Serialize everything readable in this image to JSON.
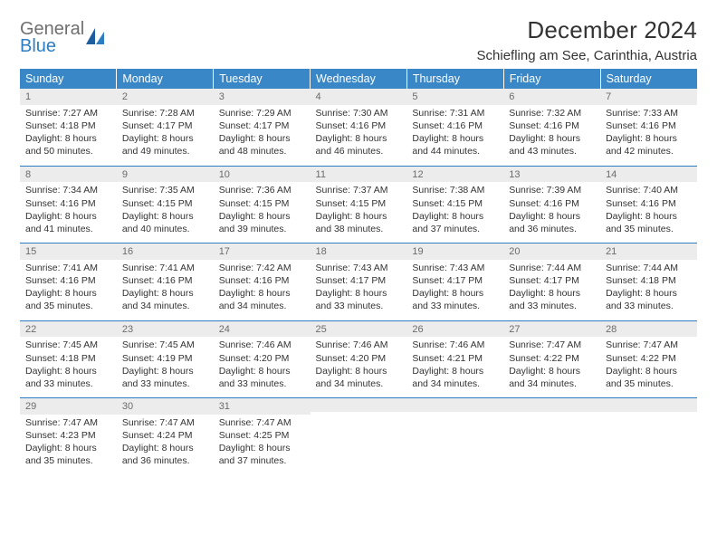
{
  "logo": {
    "line1": "General",
    "line2": "Blue"
  },
  "title": "December 2024",
  "location": "Schiefling am See, Carinthia, Austria",
  "colors": {
    "header_bg": "#3a87c7",
    "header_text": "#ffffff",
    "daynum_bg": "#ececec",
    "daynum_text": "#6b6b6b",
    "border": "#2d7dc2",
    "body_text": "#333333",
    "logo_general": "#6f6f6f",
    "logo_blue": "#2d7dc2"
  },
  "typography": {
    "title_fontsize": 26,
    "location_fontsize": 15,
    "header_fontsize": 12.5,
    "cell_fontsize": 10.5,
    "daynum_fontsize": 11
  },
  "dayHeaders": [
    "Sunday",
    "Monday",
    "Tuesday",
    "Wednesday",
    "Thursday",
    "Friday",
    "Saturday"
  ],
  "weeks": [
    [
      {
        "num": "1",
        "sunrise": "Sunrise: 7:27 AM",
        "sunset": "Sunset: 4:18 PM",
        "daylight": "Daylight: 8 hours and 50 minutes."
      },
      {
        "num": "2",
        "sunrise": "Sunrise: 7:28 AM",
        "sunset": "Sunset: 4:17 PM",
        "daylight": "Daylight: 8 hours and 49 minutes."
      },
      {
        "num": "3",
        "sunrise": "Sunrise: 7:29 AM",
        "sunset": "Sunset: 4:17 PM",
        "daylight": "Daylight: 8 hours and 48 minutes."
      },
      {
        "num": "4",
        "sunrise": "Sunrise: 7:30 AM",
        "sunset": "Sunset: 4:16 PM",
        "daylight": "Daylight: 8 hours and 46 minutes."
      },
      {
        "num": "5",
        "sunrise": "Sunrise: 7:31 AM",
        "sunset": "Sunset: 4:16 PM",
        "daylight": "Daylight: 8 hours and 44 minutes."
      },
      {
        "num": "6",
        "sunrise": "Sunrise: 7:32 AM",
        "sunset": "Sunset: 4:16 PM",
        "daylight": "Daylight: 8 hours and 43 minutes."
      },
      {
        "num": "7",
        "sunrise": "Sunrise: 7:33 AM",
        "sunset": "Sunset: 4:16 PM",
        "daylight": "Daylight: 8 hours and 42 minutes."
      }
    ],
    [
      {
        "num": "8",
        "sunrise": "Sunrise: 7:34 AM",
        "sunset": "Sunset: 4:16 PM",
        "daylight": "Daylight: 8 hours and 41 minutes."
      },
      {
        "num": "9",
        "sunrise": "Sunrise: 7:35 AM",
        "sunset": "Sunset: 4:15 PM",
        "daylight": "Daylight: 8 hours and 40 minutes."
      },
      {
        "num": "10",
        "sunrise": "Sunrise: 7:36 AM",
        "sunset": "Sunset: 4:15 PM",
        "daylight": "Daylight: 8 hours and 39 minutes."
      },
      {
        "num": "11",
        "sunrise": "Sunrise: 7:37 AM",
        "sunset": "Sunset: 4:15 PM",
        "daylight": "Daylight: 8 hours and 38 minutes."
      },
      {
        "num": "12",
        "sunrise": "Sunrise: 7:38 AM",
        "sunset": "Sunset: 4:15 PM",
        "daylight": "Daylight: 8 hours and 37 minutes."
      },
      {
        "num": "13",
        "sunrise": "Sunrise: 7:39 AM",
        "sunset": "Sunset: 4:16 PM",
        "daylight": "Daylight: 8 hours and 36 minutes."
      },
      {
        "num": "14",
        "sunrise": "Sunrise: 7:40 AM",
        "sunset": "Sunset: 4:16 PM",
        "daylight": "Daylight: 8 hours and 35 minutes."
      }
    ],
    [
      {
        "num": "15",
        "sunrise": "Sunrise: 7:41 AM",
        "sunset": "Sunset: 4:16 PM",
        "daylight": "Daylight: 8 hours and 35 minutes."
      },
      {
        "num": "16",
        "sunrise": "Sunrise: 7:41 AM",
        "sunset": "Sunset: 4:16 PM",
        "daylight": "Daylight: 8 hours and 34 minutes."
      },
      {
        "num": "17",
        "sunrise": "Sunrise: 7:42 AM",
        "sunset": "Sunset: 4:16 PM",
        "daylight": "Daylight: 8 hours and 34 minutes."
      },
      {
        "num": "18",
        "sunrise": "Sunrise: 7:43 AM",
        "sunset": "Sunset: 4:17 PM",
        "daylight": "Daylight: 8 hours and 33 minutes."
      },
      {
        "num": "19",
        "sunrise": "Sunrise: 7:43 AM",
        "sunset": "Sunset: 4:17 PM",
        "daylight": "Daylight: 8 hours and 33 minutes."
      },
      {
        "num": "20",
        "sunrise": "Sunrise: 7:44 AM",
        "sunset": "Sunset: 4:17 PM",
        "daylight": "Daylight: 8 hours and 33 minutes."
      },
      {
        "num": "21",
        "sunrise": "Sunrise: 7:44 AM",
        "sunset": "Sunset: 4:18 PM",
        "daylight": "Daylight: 8 hours and 33 minutes."
      }
    ],
    [
      {
        "num": "22",
        "sunrise": "Sunrise: 7:45 AM",
        "sunset": "Sunset: 4:18 PM",
        "daylight": "Daylight: 8 hours and 33 minutes."
      },
      {
        "num": "23",
        "sunrise": "Sunrise: 7:45 AM",
        "sunset": "Sunset: 4:19 PM",
        "daylight": "Daylight: 8 hours and 33 minutes."
      },
      {
        "num": "24",
        "sunrise": "Sunrise: 7:46 AM",
        "sunset": "Sunset: 4:20 PM",
        "daylight": "Daylight: 8 hours and 33 minutes."
      },
      {
        "num": "25",
        "sunrise": "Sunrise: 7:46 AM",
        "sunset": "Sunset: 4:20 PM",
        "daylight": "Daylight: 8 hours and 34 minutes."
      },
      {
        "num": "26",
        "sunrise": "Sunrise: 7:46 AM",
        "sunset": "Sunset: 4:21 PM",
        "daylight": "Daylight: 8 hours and 34 minutes."
      },
      {
        "num": "27",
        "sunrise": "Sunrise: 7:47 AM",
        "sunset": "Sunset: 4:22 PM",
        "daylight": "Daylight: 8 hours and 34 minutes."
      },
      {
        "num": "28",
        "sunrise": "Sunrise: 7:47 AM",
        "sunset": "Sunset: 4:22 PM",
        "daylight": "Daylight: 8 hours and 35 minutes."
      }
    ],
    [
      {
        "num": "29",
        "sunrise": "Sunrise: 7:47 AM",
        "sunset": "Sunset: 4:23 PM",
        "daylight": "Daylight: 8 hours and 35 minutes."
      },
      {
        "num": "30",
        "sunrise": "Sunrise: 7:47 AM",
        "sunset": "Sunset: 4:24 PM",
        "daylight": "Daylight: 8 hours and 36 minutes."
      },
      {
        "num": "31",
        "sunrise": "Sunrise: 7:47 AM",
        "sunset": "Sunset: 4:25 PM",
        "daylight": "Daylight: 8 hours and 37 minutes."
      },
      {
        "empty": true
      },
      {
        "empty": true
      },
      {
        "empty": true
      },
      {
        "empty": true
      }
    ]
  ]
}
